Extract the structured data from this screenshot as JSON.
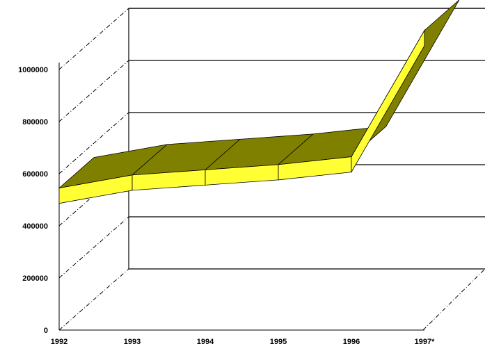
{
  "chart_data": {
    "type": "area",
    "title": "",
    "xlabel": "",
    "ylabel": "",
    "categories": [
      "1992",
      "1993",
      "1994",
      "1995",
      "1996",
      "1997*"
    ],
    "values": [
      545000,
      595000,
      615000,
      635000,
      665000,
      1150000
    ],
    "ylim": [
      0,
      1000000
    ],
    "yticks": [
      {
        "value": 0,
        "label": "0"
      },
      {
        "value": 200000,
        "label": "200000"
      },
      {
        "value": 400000,
        "label": "400000"
      },
      {
        "value": 600000,
        "label": "600000"
      },
      {
        "value": 800000,
        "label": "800000"
      },
      {
        "value": 1000000,
        "label": "1000000"
      }
    ],
    "grid": true,
    "legend": "none",
    "three_d": true,
    "colors": {
      "front": "#ffff33",
      "top": "#808000",
      "edge": "#000000",
      "grid": "#000000"
    }
  }
}
